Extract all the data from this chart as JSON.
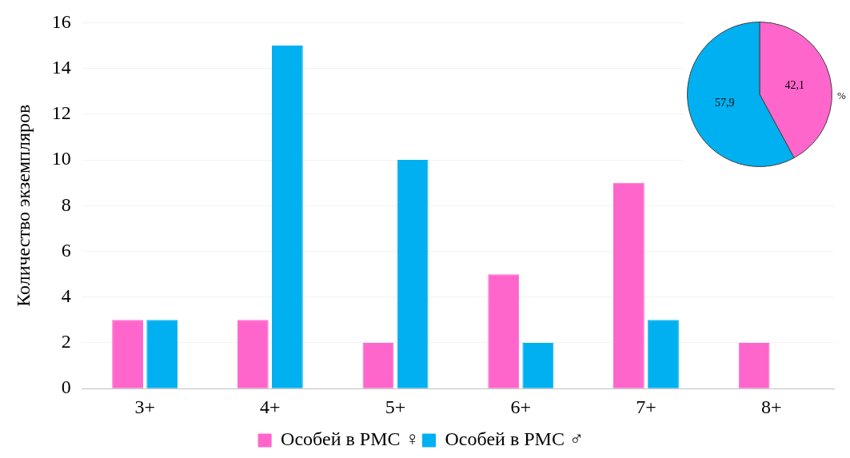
{
  "chart_data": [
    {
      "type": "bar",
      "ylabel": "Количество экземпляров",
      "categories": [
        "3+",
        "4+",
        "5+",
        "6+",
        "7+",
        "8+"
      ],
      "series": [
        {
          "name": "Особей в РМС ♀",
          "color": "#ff66cc",
          "values": [
            3,
            3,
            2,
            5,
            9,
            2
          ]
        },
        {
          "name": "Особей в РМС ♂",
          "color": "#00b0f0",
          "values": [
            3,
            15,
            10,
            2,
            3,
            0
          ]
        }
      ],
      "ylim": [
        0,
        16
      ],
      "yticks": [
        0,
        2,
        4,
        6,
        8,
        10,
        12,
        14,
        16
      ],
      "grid": "y",
      "legend": "bottom"
    },
    {
      "type": "pie",
      "categories": [
        null,
        null
      ],
      "values": [
        42.1,
        57.9
      ],
      "colors": [
        "#ff66cc",
        "#00b0f0"
      ],
      "value_labels": [
        "42,1",
        "57,9"
      ],
      "annotations": [
        "%"
      ]
    }
  ]
}
